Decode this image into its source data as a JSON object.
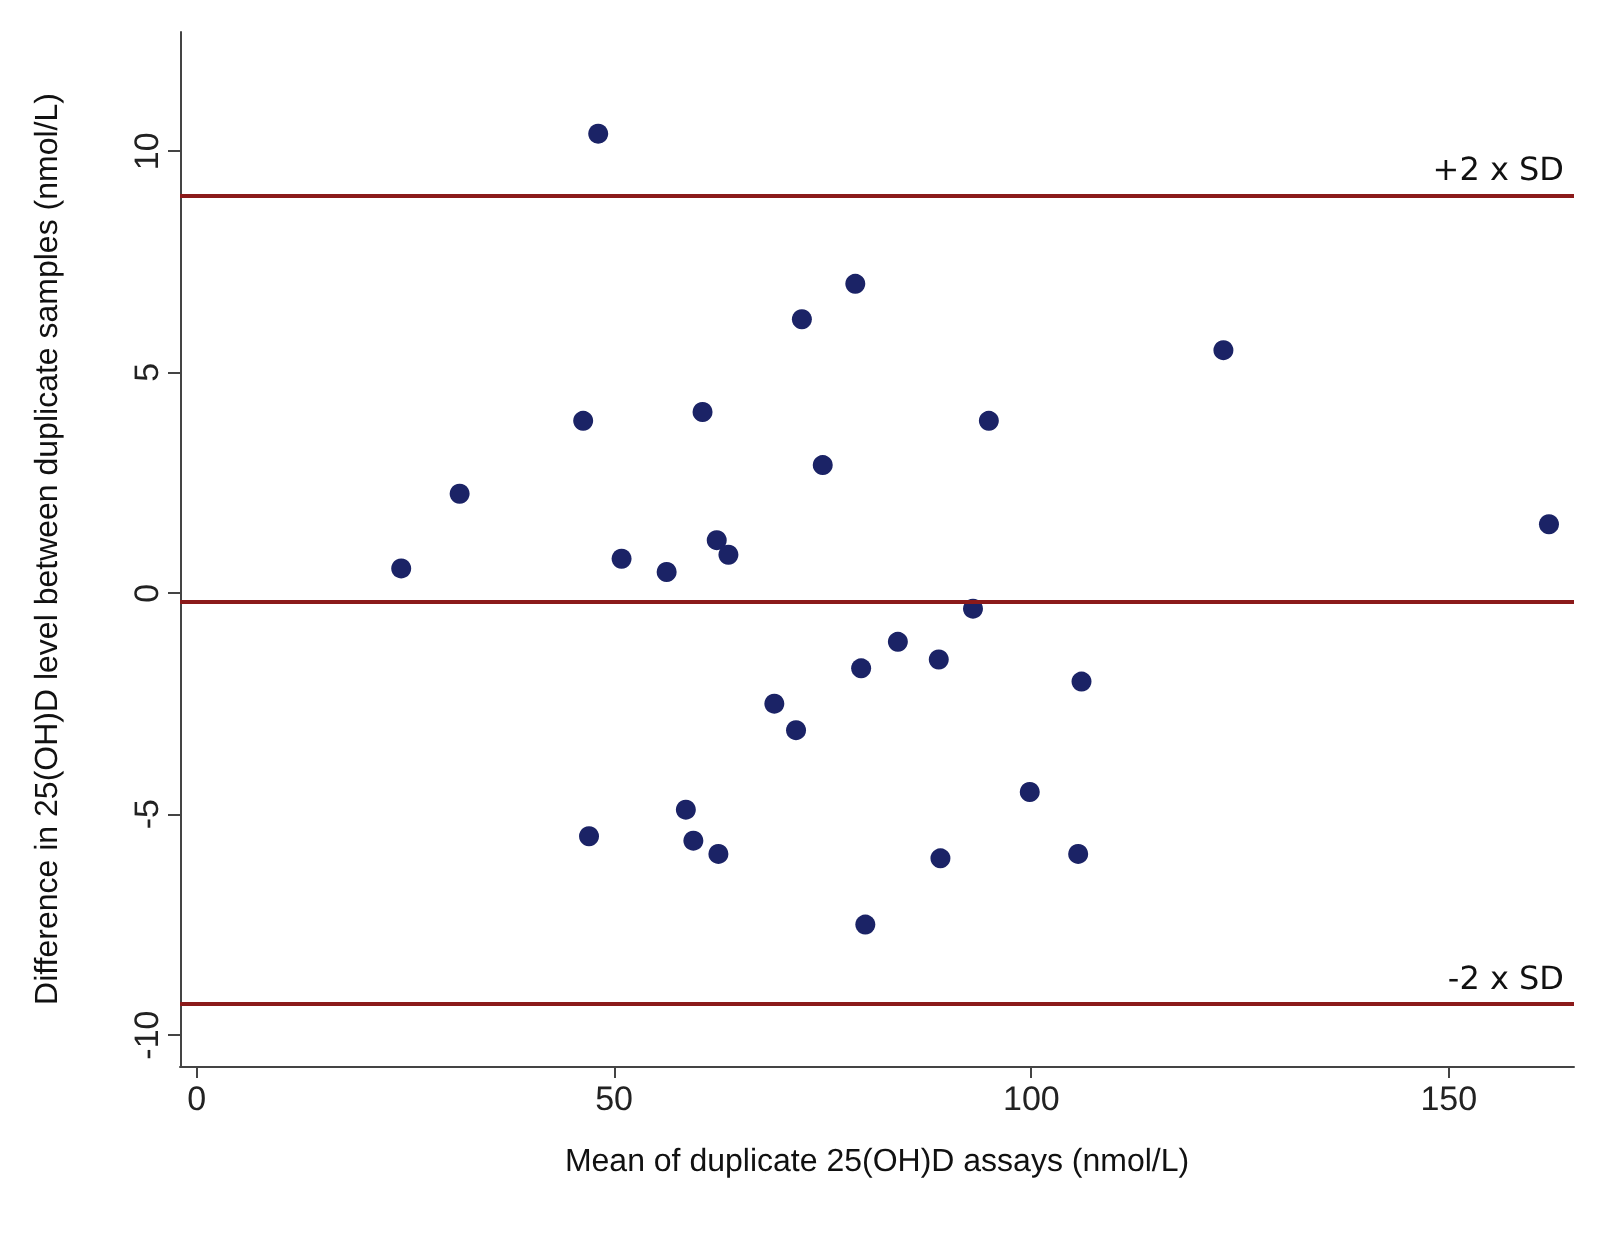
{
  "chart_data": {
    "type": "scatter",
    "xlabel": "Mean of duplicate 25(OH)D assays (nmol/L)",
    "ylabel": "Difference in 25(OH)D level between duplicate samples (nmol/L)",
    "x": [
      48.1,
      24.5,
      31.5,
      46.3,
      47,
      50.9,
      56.3,
      60.6,
      62.3,
      63.7,
      58.6,
      59.5,
      62.5,
      69.2,
      71.8,
      72.5,
      75,
      78.9,
      79.6,
      80.1,
      84,
      88.9,
      89.1,
      93,
      94.9,
      99.8,
      106,
      105.6,
      123,
      162
    ],
    "series": [
      {
        "color": "#1b2366",
        "values": [
          10.4,
          0.56,
          2.25,
          3.9,
          -5.5,
          0.78,
          0.48,
          4.1,
          1.2,
          0.87,
          -4.9,
          -5.6,
          -5.9,
          -2.5,
          -3.1,
          6.2,
          2.9,
          7.0,
          -1.7,
          -7.5,
          -1.1,
          -1.5,
          -6.0,
          -0.35,
          3.9,
          -4.5,
          -2.0,
          -5.9,
          5.5,
          1.56
        ]
      }
    ],
    "xlim": [
      -2,
      165
    ],
    "xticks": [
      0,
      50,
      100,
      150
    ],
    "ylim": [
      -10.7,
      12.7
    ],
    "yticks": [
      -10,
      -5,
      0,
      5,
      10
    ],
    "ref_lines": [
      {
        "axis": "y",
        "value": 9.0,
        "label": "+2 x SD",
        "color": "#8b1a1a"
      },
      {
        "axis": "y",
        "value": -0.2,
        "label": null,
        "color": "#8b1a1a"
      },
      {
        "axis": "y",
        "value": -9.3,
        "label": "-2 x SD",
        "color": "#8b1a1a"
      }
    ],
    "grid": false,
    "marker": "circle"
  }
}
